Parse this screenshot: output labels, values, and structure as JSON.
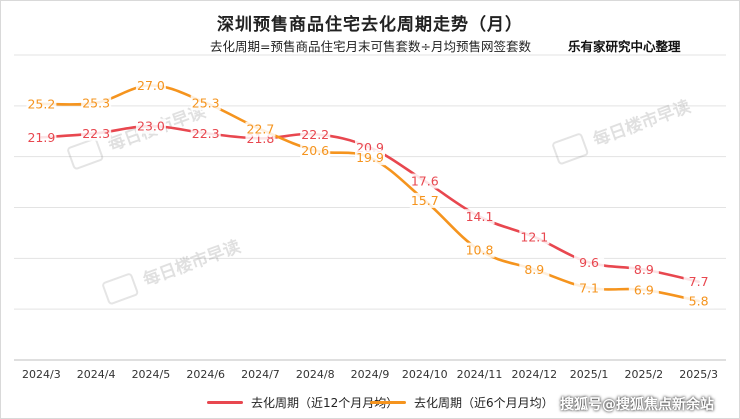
{
  "header": {
    "title": "深圳预售商品住宅去化周期走势（月）",
    "subtitle": "去化周期=预售商品住宅月末可售套数÷月均预售网签套数",
    "source": "乐有家研究中心整理"
  },
  "watermarks": [
    "每日楼市早读",
    "每日楼市早读",
    "每日楼市早读"
  ],
  "footer_credit": "搜狐号@搜狐焦点新余站",
  "chart_data": {
    "type": "line",
    "title": "深圳预售商品住宅去化周期走势（月）",
    "subtitle": "去化周期=预售商品住宅月末可售套数÷月均预售网签套数",
    "categories": [
      "2024/3",
      "2024/4",
      "2024/5",
      "2024/6",
      "2024/7",
      "2024/8",
      "2024/9",
      "2024/10",
      "2024/11",
      "2024/12",
      "2025/1",
      "2025/2",
      "2025/3"
    ],
    "series": [
      {
        "name": "去化周期（近12个月月均）",
        "color": "#e8474f",
        "values": [
          21.9,
          22.3,
          23.0,
          22.3,
          21.8,
          22.2,
          20.9,
          17.6,
          14.1,
          12.1,
          9.6,
          8.9,
          7.7
        ]
      },
      {
        "name": "去化周期（近6个月月均）",
        "color": "#f5941e",
        "values": [
          25.2,
          25.3,
          27.0,
          25.3,
          22.7,
          20.6,
          19.9,
          15.7,
          10.8,
          8.9,
          7.1,
          6.9,
          5.8
        ]
      }
    ],
    "ylim": [
      0,
      30
    ],
    "grid": "horizontal",
    "legend": "bottom",
    "xlabel": "",
    "ylabel": ""
  }
}
